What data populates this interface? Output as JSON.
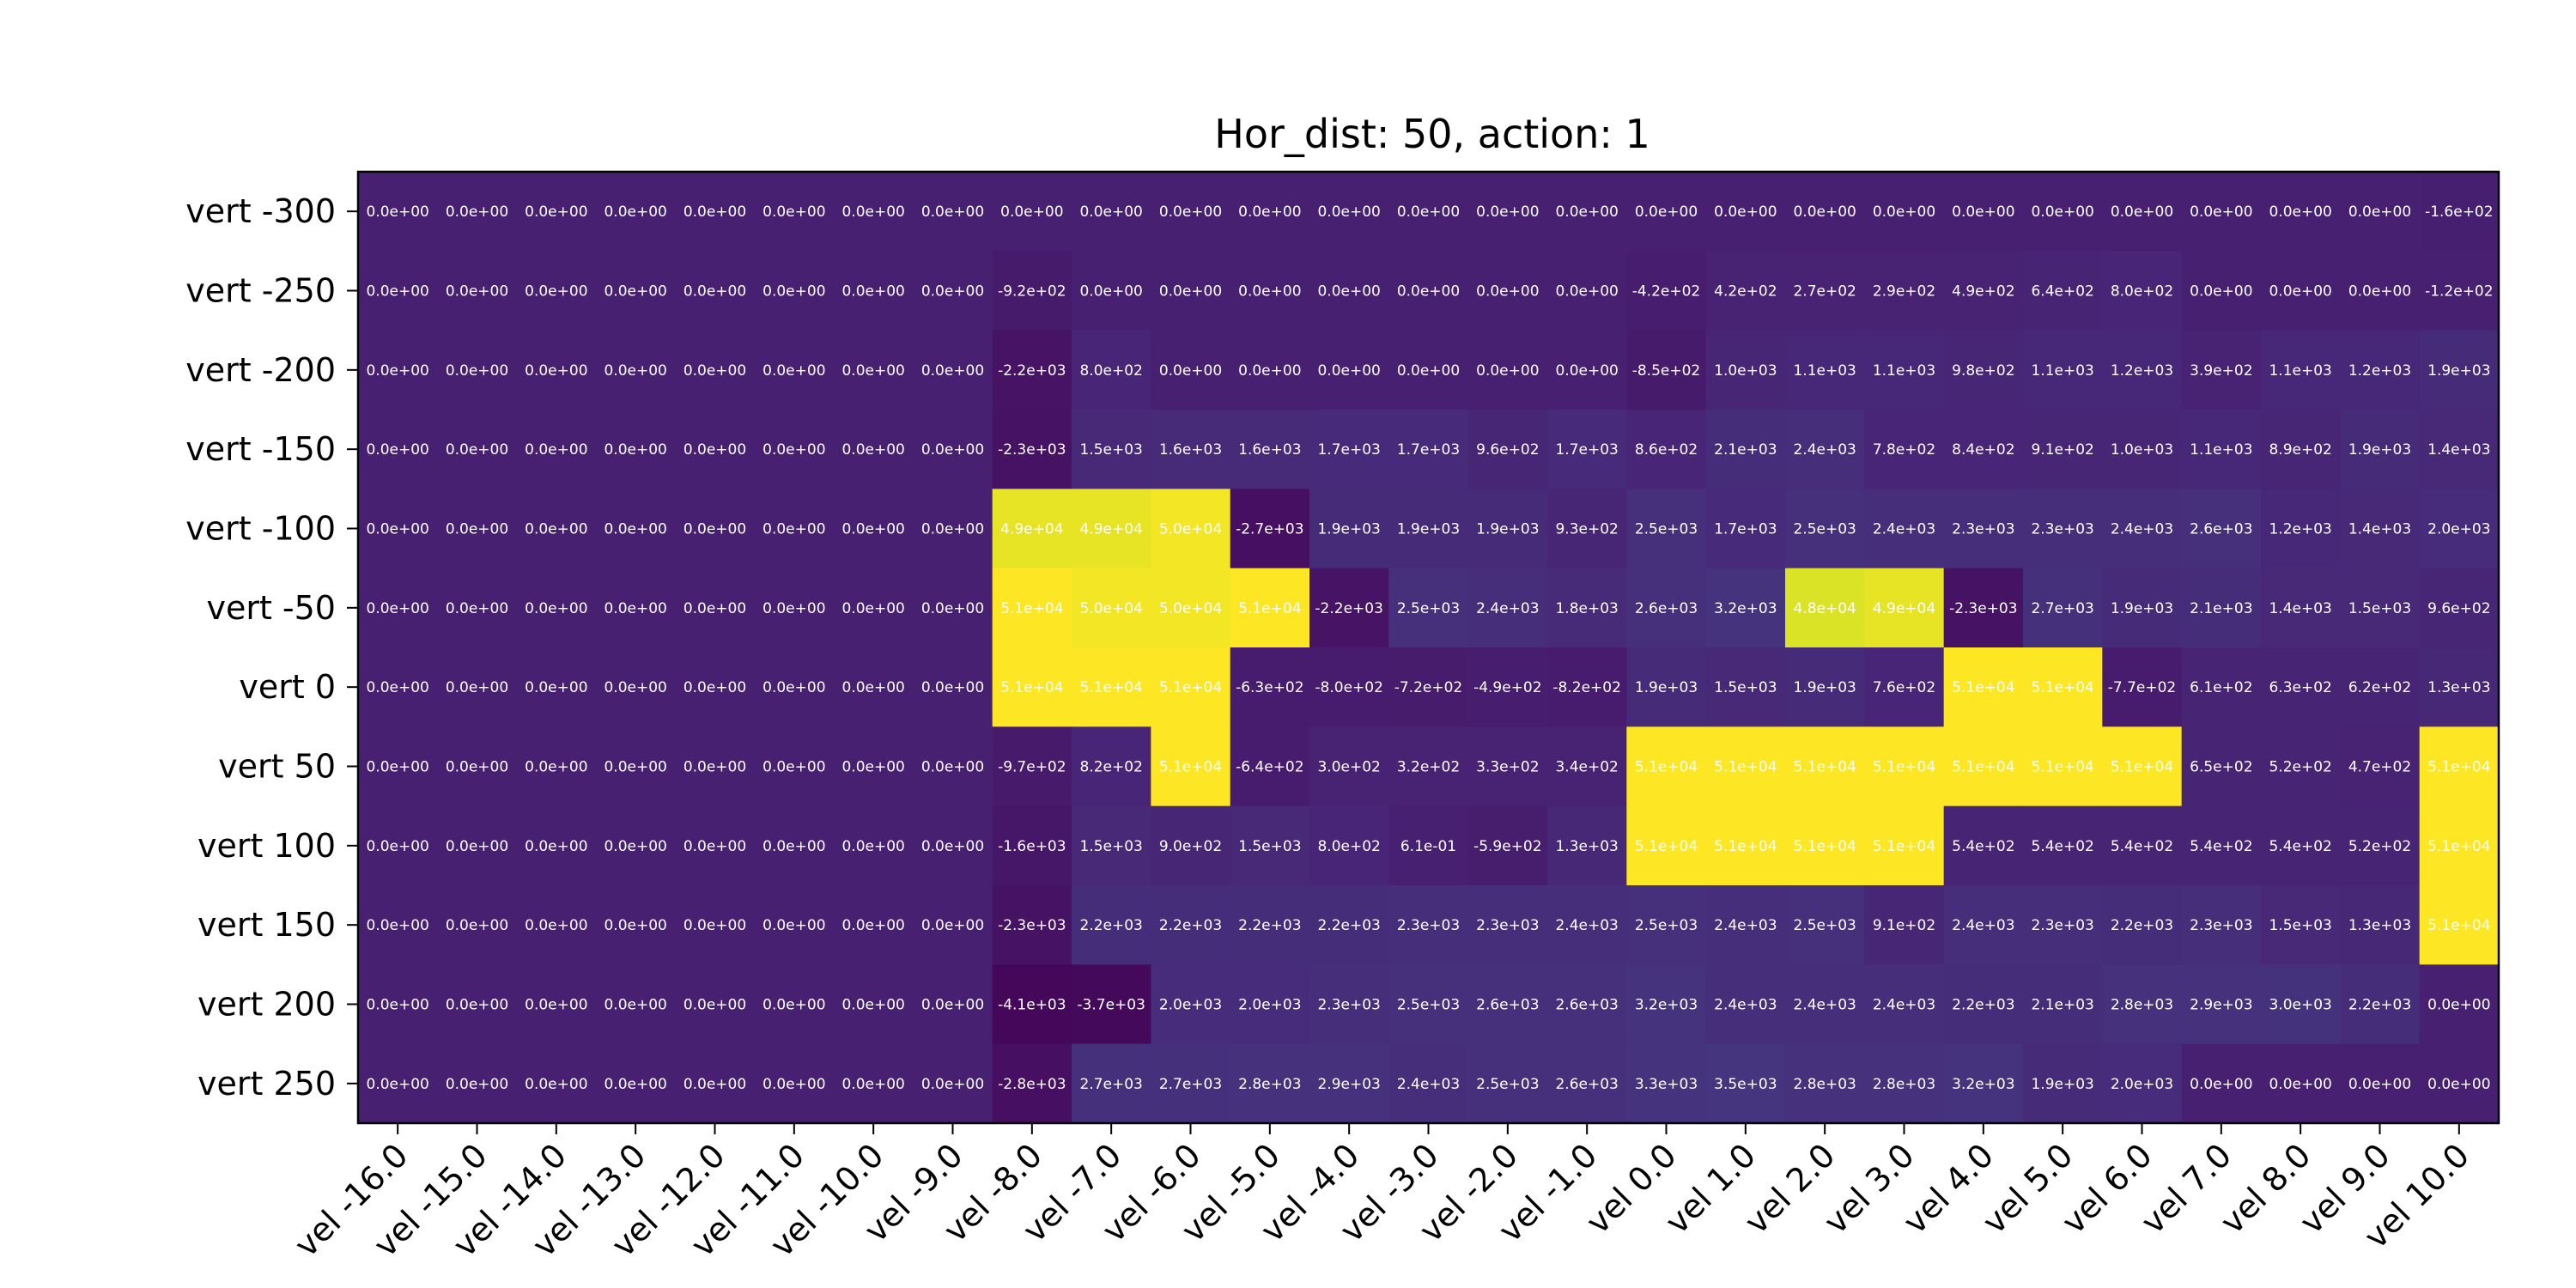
{
  "chart_data": {
    "type": "heatmap",
    "title": "Hor_dist: 50, action: 1",
    "xlabel": "",
    "ylabel": "",
    "colormap": "viridis",
    "color_range": [
      -5000,
      51000
    ],
    "grid": false,
    "x_categories": [
      "vel -16.0",
      "vel -15.0",
      "vel -14.0",
      "vel -13.0",
      "vel -12.0",
      "vel -11.0",
      "vel -10.0",
      "vel -9.0",
      "vel -8.0",
      "vel -7.0",
      "vel -6.0",
      "vel -5.0",
      "vel -4.0",
      "vel -3.0",
      "vel -2.0",
      "vel -1.0",
      "vel 0.0",
      "vel 1.0",
      "vel 2.0",
      "vel 3.0",
      "vel 4.0",
      "vel 5.0",
      "vel 6.0",
      "vel 7.0",
      "vel 8.0",
      "vel 9.0",
      "vel 10.0"
    ],
    "y_categories": [
      "vert -300",
      "vert -250",
      "vert -200",
      "vert -150",
      "vert -100",
      "vert -50",
      "vert 0",
      "vert 50",
      "vert 100",
      "vert 150",
      "vert 200",
      "vert 250"
    ],
    "values": [
      [
        0,
        0,
        0,
        0,
        0,
        0,
        0,
        0,
        0,
        0,
        0,
        0,
        0,
        0,
        0,
        0,
        0,
        0,
        0,
        0,
        0,
        0,
        0,
        0,
        0,
        0,
        -160
      ],
      [
        0,
        0,
        0,
        0,
        0,
        0,
        0,
        0,
        -920,
        0,
        0,
        0,
        0,
        0,
        0,
        0,
        -420,
        420,
        270,
        290,
        490,
        640,
        800,
        0,
        0,
        0,
        -120
      ],
      [
        0,
        0,
        0,
        0,
        0,
        0,
        0,
        0,
        -2200,
        800,
        0,
        0,
        0,
        0,
        0,
        0,
        -850,
        1000,
        1100,
        1100,
        980,
        1100,
        1200,
        390,
        1100,
        1200,
        1900
      ],
      [
        0,
        0,
        0,
        0,
        0,
        0,
        0,
        0,
        -2300,
        1500,
        1600,
        1600,
        1700,
        1700,
        960,
        1700,
        860,
        2100,
        2400,
        780,
        840,
        910,
        1000,
        1100,
        890,
        1900,
        1400
      ],
      [
        0,
        0,
        0,
        0,
        0,
        0,
        0,
        0,
        49000,
        49000,
        50000,
        -2700,
        1900,
        1900,
        1900,
        930,
        2500,
        1700,
        2500,
        2400,
        2300,
        2300,
        2400,
        2600,
        1200,
        1400,
        2000
      ],
      [
        0,
        0,
        0,
        0,
        0,
        0,
        0,
        0,
        51000,
        50000,
        50000,
        51000,
        -2200,
        2500,
        2400,
        1800,
        2600,
        3200,
        48000,
        49000,
        -2300,
        2700,
        1900,
        2100,
        1400,
        1500,
        960
      ],
      [
        0,
        0,
        0,
        0,
        0,
        0,
        0,
        0,
        51000,
        51000,
        51000,
        -630,
        -800,
        -720,
        -490,
        -820,
        1900,
        1500,
        1900,
        760,
        51000,
        51000,
        -770,
        610,
        630,
        620,
        1300
      ],
      [
        0,
        0,
        0,
        0,
        0,
        0,
        0,
        0,
        -970,
        820,
        51000,
        -640,
        300,
        320,
        330,
        340,
        51000,
        51000,
        51000,
        51000,
        51000,
        51000,
        51000,
        650,
        520,
        470,
        51000
      ],
      [
        0,
        0,
        0,
        0,
        0,
        0,
        0,
        0,
        -1600,
        1500,
        900,
        1500,
        800,
        0.61,
        -590,
        1300,
        51000,
        51000,
        51000,
        51000,
        540,
        540,
        540,
        540,
        540,
        520,
        51000
      ],
      [
        0,
        0,
        0,
        0,
        0,
        0,
        0,
        0,
        -2300,
        2200,
        2200,
        2200,
        2200,
        2300,
        2300,
        2400,
        2500,
        2400,
        2500,
        910,
        2400,
        2300,
        2200,
        2300,
        1500,
        1300,
        51000
      ],
      [
        0,
        0,
        0,
        0,
        0,
        0,
        0,
        0,
        -4100,
        -3700,
        2000,
        2000,
        2300,
        2500,
        2600,
        2600,
        3200,
        2400,
        2400,
        2400,
        2200,
        2100,
        2800,
        2900,
        3000,
        2200,
        0
      ],
      [
        0,
        0,
        0,
        0,
        0,
        0,
        0,
        0,
        -2800,
        2700,
        2700,
        2800,
        2900,
        2400,
        2500,
        2600,
        3300,
        3500,
        2800,
        2800,
        3200,
        1900,
        2000,
        0,
        0,
        0,
        0
      ]
    ],
    "cell_labels": [
      [
        "0.0e+00",
        "0.0e+00",
        "0.0e+00",
        "0.0e+00",
        "0.0e+00",
        "0.0e+00",
        "0.0e+00",
        "0.0e+00",
        "0.0e+00",
        "0.0e+00",
        "0.0e+00",
        "0.0e+00",
        "0.0e+00",
        "0.0e+00",
        "0.0e+00",
        "0.0e+00",
        "0.0e+00",
        "0.0e+00",
        "0.0e+00",
        "0.0e+00",
        "0.0e+00",
        "0.0e+00",
        "0.0e+00",
        "0.0e+00",
        "0.0e+00",
        "0.0e+00",
        "-1.6e+02"
      ],
      [
        "0.0e+00",
        "0.0e+00",
        "0.0e+00",
        "0.0e+00",
        "0.0e+00",
        "0.0e+00",
        "0.0e+00",
        "0.0e+00",
        "-9.2e+02",
        "0.0e+00",
        "0.0e+00",
        "0.0e+00",
        "0.0e+00",
        "0.0e+00",
        "0.0e+00",
        "0.0e+00",
        "-4.2e+02",
        "4.2e+02",
        "2.7e+02",
        "2.9e+02",
        "4.9e+02",
        "6.4e+02",
        "8.0e+02",
        "0.0e+00",
        "0.0e+00",
        "0.0e+00",
        "-1.2e+02"
      ],
      [
        "0.0e+00",
        "0.0e+00",
        "0.0e+00",
        "0.0e+00",
        "0.0e+00",
        "0.0e+00",
        "0.0e+00",
        "0.0e+00",
        "-2.2e+03",
        "8.0e+02",
        "0.0e+00",
        "0.0e+00",
        "0.0e+00",
        "0.0e+00",
        "0.0e+00",
        "0.0e+00",
        "-8.5e+02",
        "1.0e+03",
        "1.1e+03",
        "1.1e+03",
        "9.8e+02",
        "1.1e+03",
        "1.2e+03",
        "3.9e+02",
        "1.1e+03",
        "1.2e+03",
        "1.9e+03"
      ],
      [
        "0.0e+00",
        "0.0e+00",
        "0.0e+00",
        "0.0e+00",
        "0.0e+00",
        "0.0e+00",
        "0.0e+00",
        "0.0e+00",
        "-2.3e+03",
        "1.5e+03",
        "1.6e+03",
        "1.6e+03",
        "1.7e+03",
        "1.7e+03",
        "9.6e+02",
        "1.7e+03",
        "8.6e+02",
        "2.1e+03",
        "2.4e+03",
        "7.8e+02",
        "8.4e+02",
        "9.1e+02",
        "1.0e+03",
        "1.1e+03",
        "8.9e+02",
        "1.9e+03",
        "1.4e+03"
      ],
      [
        "0.0e+00",
        "0.0e+00",
        "0.0e+00",
        "0.0e+00",
        "0.0e+00",
        "0.0e+00",
        "0.0e+00",
        "0.0e+00",
        "4.9e+04",
        "4.9e+04",
        "5.0e+04",
        "-2.7e+03",
        "1.9e+03",
        "1.9e+03",
        "1.9e+03",
        "9.3e+02",
        "2.5e+03",
        "1.7e+03",
        "2.5e+03",
        "2.4e+03",
        "2.3e+03",
        "2.3e+03",
        "2.4e+03",
        "2.6e+03",
        "1.2e+03",
        "1.4e+03",
        "2.0e+03"
      ],
      [
        "0.0e+00",
        "0.0e+00",
        "0.0e+00",
        "0.0e+00",
        "0.0e+00",
        "0.0e+00",
        "0.0e+00",
        "0.0e+00",
        "5.1e+04",
        "5.0e+04",
        "5.0e+04",
        "5.1e+04",
        "-2.2e+03",
        "2.5e+03",
        "2.4e+03",
        "1.8e+03",
        "2.6e+03",
        "3.2e+03",
        "4.8e+04",
        "4.9e+04",
        "-2.3e+03",
        "2.7e+03",
        "1.9e+03",
        "2.1e+03",
        "1.4e+03",
        "1.5e+03",
        "9.6e+02"
      ],
      [
        "0.0e+00",
        "0.0e+00",
        "0.0e+00",
        "0.0e+00",
        "0.0e+00",
        "0.0e+00",
        "0.0e+00",
        "0.0e+00",
        "5.1e+04",
        "5.1e+04",
        "5.1e+04",
        "-6.3e+02",
        "-8.0e+02",
        "-7.2e+02",
        "-4.9e+02",
        "-8.2e+02",
        "1.9e+03",
        "1.5e+03",
        "1.9e+03",
        "7.6e+02",
        "5.1e+04",
        "5.1e+04",
        "-7.7e+02",
        "6.1e+02",
        "6.3e+02",
        "6.2e+02",
        "1.3e+03"
      ],
      [
        "0.0e+00",
        "0.0e+00",
        "0.0e+00",
        "0.0e+00",
        "0.0e+00",
        "0.0e+00",
        "0.0e+00",
        "0.0e+00",
        "-9.7e+02",
        "8.2e+02",
        "5.1e+04",
        "-6.4e+02",
        "3.0e+02",
        "3.2e+02",
        "3.3e+02",
        "3.4e+02",
        "5.1e+04",
        "5.1e+04",
        "5.1e+04",
        "5.1e+04",
        "5.1e+04",
        "5.1e+04",
        "5.1e+04",
        "6.5e+02",
        "5.2e+02",
        "4.7e+02",
        "5.1e+04"
      ],
      [
        "0.0e+00",
        "0.0e+00",
        "0.0e+00",
        "0.0e+00",
        "0.0e+00",
        "0.0e+00",
        "0.0e+00",
        "0.0e+00",
        "-1.6e+03",
        "1.5e+03",
        "9.0e+02",
        "1.5e+03",
        "8.0e+02",
        "6.1e-01",
        "-5.9e+02",
        "1.3e+03",
        "5.1e+04",
        "5.1e+04",
        "5.1e+04",
        "5.1e+04",
        "5.4e+02",
        "5.4e+02",
        "5.4e+02",
        "5.4e+02",
        "5.4e+02",
        "5.2e+02",
        "5.1e+04"
      ],
      [
        "0.0e+00",
        "0.0e+00",
        "0.0e+00",
        "0.0e+00",
        "0.0e+00",
        "0.0e+00",
        "0.0e+00",
        "0.0e+00",
        "-2.3e+03",
        "2.2e+03",
        "2.2e+03",
        "2.2e+03",
        "2.2e+03",
        "2.3e+03",
        "2.3e+03",
        "2.4e+03",
        "2.5e+03",
        "2.4e+03",
        "2.5e+03",
        "9.1e+02",
        "2.4e+03",
        "2.3e+03",
        "2.2e+03",
        "2.3e+03",
        "1.5e+03",
        "1.3e+03",
        "5.1e+04"
      ],
      [
        "0.0e+00",
        "0.0e+00",
        "0.0e+00",
        "0.0e+00",
        "0.0e+00",
        "0.0e+00",
        "0.0e+00",
        "0.0e+00",
        "-4.1e+03",
        "-3.7e+03",
        "2.0e+03",
        "2.0e+03",
        "2.3e+03",
        "2.5e+03",
        "2.6e+03",
        "2.6e+03",
        "3.2e+03",
        "2.4e+03",
        "2.4e+03",
        "2.4e+03",
        "2.2e+03",
        "2.1e+03",
        "2.8e+03",
        "2.9e+03",
        "3.0e+03",
        "2.2e+03",
        "0.0e+00"
      ],
      [
        "0.0e+00",
        "0.0e+00",
        "0.0e+00",
        "0.0e+00",
        "0.0e+00",
        "0.0e+00",
        "0.0e+00",
        "0.0e+00",
        "-2.8e+03",
        "2.7e+03",
        "2.7e+03",
        "2.8e+03",
        "2.9e+03",
        "2.4e+03",
        "2.5e+03",
        "2.6e+03",
        "3.3e+03",
        "3.5e+03",
        "2.8e+03",
        "2.8e+03",
        "3.2e+03",
        "1.9e+03",
        "2.0e+03",
        "0.0e+00",
        "0.0e+00",
        "0.0e+00",
        "0.0e+00"
      ]
    ]
  }
}
